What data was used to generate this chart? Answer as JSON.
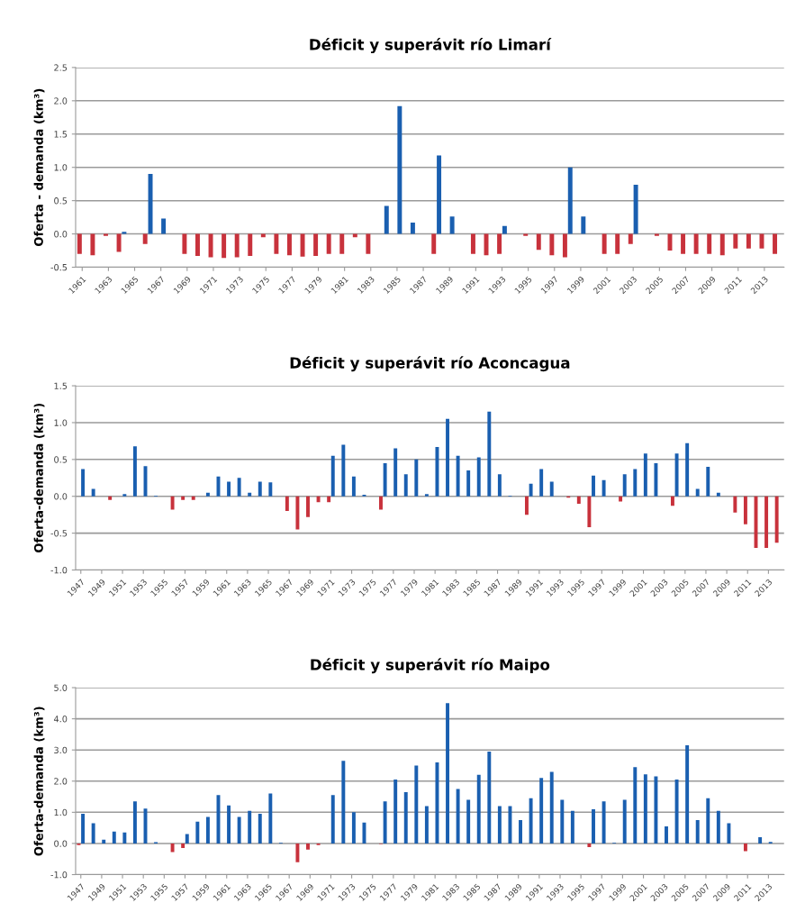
{
  "chart_data": [
    {
      "type": "bar",
      "title": "Déficit y superávit río Limarí",
      "ylabel": "Oferta - demanda (km³)",
      "grid": "y",
      "xlim": [
        1960.5,
        2014.5
      ],
      "xticks": [
        1961,
        1963,
        1965,
        1967,
        1969,
        1971,
        1973,
        1975,
        1977,
        1979,
        1981,
        1983,
        1985,
        1987,
        1989,
        1991,
        1993,
        1995,
        1997,
        1999,
        2001,
        2003,
        2005,
        2007,
        2009,
        2011,
        2013
      ],
      "ylim": [
        -0.5,
        2.5
      ],
      "yticks": [
        {
          "value": -0.5,
          "label": "-0.5"
        },
        {
          "value": 0,
          "label": "0.0"
        },
        {
          "value": 0.5,
          "label": "0.5"
        },
        {
          "value": 1,
          "label": "1.0"
        },
        {
          "value": 1.5,
          "label": "1.5"
        },
        {
          "value": 2,
          "label": "2.0"
        },
        {
          "value": 2.5,
          "label": "2.5"
        }
      ],
      "series": [
        {
          "color": "#c8323c",
          "x": [
            1961,
            1962,
            1963,
            1964,
            1966,
            1969,
            1970,
            1971,
            1972,
            1973,
            1974,
            1975,
            1976,
            1977,
            1978,
            1979,
            1980,
            1981,
            1982,
            1983,
            1988,
            1991,
            1992,
            1993,
            1995,
            1996,
            1997,
            1998,
            2001,
            2002,
            2003,
            2005,
            2006,
            2007,
            2008,
            2009,
            2010,
            2011,
            2012,
            2013,
            2014
          ],
          "values": [
            -0.3,
            -0.32,
            -0.03,
            -0.27,
            -0.15,
            -0.3,
            -0.33,
            -0.35,
            -0.36,
            -0.35,
            -0.33,
            -0.05,
            -0.3,
            -0.32,
            -0.34,
            -0.33,
            -0.3,
            -0.3,
            -0.05,
            -0.3,
            -0.3,
            -0.3,
            -0.32,
            -0.3,
            -0.03,
            -0.24,
            -0.32,
            -0.35,
            -0.3,
            -0.3,
            -0.15,
            -0.03,
            -0.25,
            -0.3,
            -0.3,
            -0.3,
            -0.32,
            -0.22,
            -0.22,
            -0.22,
            -0.3
          ]
        },
        {
          "color": "#1a5fb0",
          "x": [
            1964,
            1966,
            1967,
            1984,
            1985,
            1986,
            1988,
            1989,
            1993,
            1998,
            1999,
            2003
          ],
          "values": [
            0.03,
            0.9,
            0.23,
            0.42,
            1.92,
            0.17,
            1.18,
            0.26,
            0.12,
            1.0,
            0.26,
            0.74
          ]
        }
      ]
    },
    {
      "type": "bar",
      "title": "Déficit y superávit río Aconcagua",
      "ylabel": "Oferta-demanda (km³)",
      "grid": "y",
      "xlim": [
        1946.5,
        2014.5
      ],
      "xticks": [
        1947,
        1949,
        1951,
        1953,
        1955,
        1957,
        1959,
        1961,
        1963,
        1965,
        1967,
        1969,
        1971,
        1973,
        1975,
        1977,
        1979,
        1981,
        1983,
        1985,
        1987,
        1989,
        1991,
        1993,
        1995,
        1997,
        1999,
        2001,
        2003,
        2005,
        2007,
        2009,
        2011,
        2013
      ],
      "ylim": [
        -1.0,
        1.5
      ],
      "yticks": [
        {
          "value": -1,
          "label": "-1.0"
        },
        {
          "value": -0.5,
          "label": "-0.5"
        },
        {
          "value": 0,
          "label": "0.0"
        },
        {
          "value": 0.5,
          "label": "0.5"
        },
        {
          "value": 1,
          "label": "1.0"
        },
        {
          "value": 1.5,
          "label": "1.5"
        }
      ],
      "series": [
        {
          "color": "#c8323c",
          "x": [
            1950,
            1956,
            1957,
            1958,
            1967,
            1968,
            1969,
            1970,
            1971,
            1976,
            1990,
            1994,
            1995,
            1996,
            1999,
            2004,
            2010,
            2011,
            2012,
            2013,
            2014
          ],
          "values": [
            -0.05,
            -0.18,
            -0.05,
            -0.05,
            -0.2,
            -0.45,
            -0.28,
            -0.08,
            -0.08,
            -0.18,
            -0.25,
            -0.02,
            -0.1,
            -0.42,
            -0.07,
            -0.13,
            -0.22,
            -0.38,
            -0.7,
            -0.7,
            -0.63
          ]
        },
        {
          "color": "#1a5fb0",
          "x": [
            1947,
            1948,
            1951,
            1952,
            1953,
            1954,
            1959,
            1960,
            1961,
            1962,
            1963,
            1964,
            1965,
            1971,
            1972,
            1973,
            1974,
            1976,
            1977,
            1978,
            1979,
            1980,
            1981,
            1982,
            1983,
            1984,
            1985,
            1986,
            1987,
            1988,
            1990,
            1991,
            1992,
            1996,
            1997,
            1999,
            2000,
            2001,
            2002,
            2004,
            2005,
            2006,
            2007,
            2008
          ],
          "values": [
            0.37,
            0.1,
            0.03,
            0.68,
            0.41,
            0.01,
            0.05,
            0.27,
            0.2,
            0.25,
            0.05,
            0.2,
            0.19,
            0.55,
            0.7,
            0.27,
            0.02,
            0.45,
            0.65,
            0.3,
            0.5,
            0.03,
            0.67,
            1.05,
            0.55,
            0.35,
            0.53,
            1.15,
            0.3,
            0.01,
            0.17,
            0.37,
            0.2,
            0.28,
            0.22,
            0.3,
            0.37,
            0.58,
            0.45,
            0.58,
            0.72,
            0.1,
            0.4,
            0.05
          ]
        }
      ]
    },
    {
      "type": "bar",
      "title": "Déficit y superávit río Maipo",
      "ylabel": "Oferta-demanda (km³)",
      "grid": "y",
      "xlim": [
        1946.5,
        2014.5
      ],
      "xticks": [
        1947,
        1949,
        1951,
        1953,
        1955,
        1957,
        1959,
        1961,
        1963,
        1965,
        1967,
        1969,
        1971,
        1973,
        1975,
        1977,
        1979,
        1981,
        1983,
        1985,
        1987,
        1989,
        1991,
        1993,
        1995,
        1997,
        1999,
        2001,
        2003,
        2005,
        2007,
        2009,
        2011,
        2013
      ],
      "ylim": [
        -1.0,
        5.0
      ],
      "yticks": [
        {
          "value": -1,
          "label": "-1.0"
        },
        {
          "value": 0,
          "label": "0.0"
        },
        {
          "value": 1,
          "label": "1.0"
        },
        {
          "value": 2,
          "label": "2.0"
        },
        {
          "value": 3,
          "label": "3.0"
        },
        {
          "value": 4,
          "label": "4.0"
        },
        {
          "value": 5,
          "label": "5.0"
        }
      ],
      "series": [
        {
          "color": "#c8323c",
          "x": [
            1947,
            1956,
            1957,
            1968,
            1969,
            1970,
            1976,
            1996,
            2011
          ],
          "values": [
            -0.05,
            -0.28,
            -0.15,
            -0.6,
            -0.2,
            -0.05,
            -0.02,
            -0.12,
            -0.25
          ]
        },
        {
          "color": "#1a5fb0",
          "x": [
            1947,
            1948,
            1949,
            1950,
            1951,
            1952,
            1953,
            1954,
            1957,
            1958,
            1959,
            1960,
            1961,
            1962,
            1963,
            1964,
            1965,
            1966,
            1971,
            1972,
            1973,
            1974,
            1976,
            1977,
            1978,
            1979,
            1980,
            1981,
            1982,
            1983,
            1984,
            1985,
            1986,
            1987,
            1988,
            1989,
            1990,
            1991,
            1992,
            1993,
            1994,
            1996,
            1997,
            1998,
            1999,
            2000,
            2001,
            2002,
            2003,
            2004,
            2005,
            2006,
            2007,
            2008,
            2009,
            2012,
            2013
          ],
          "values": [
            0.95,
            0.65,
            0.12,
            0.38,
            0.35,
            1.35,
            1.12,
            0.04,
            0.3,
            0.7,
            0.85,
            1.55,
            1.22,
            0.85,
            1.05,
            0.95,
            1.6,
            0.02,
            1.55,
            2.65,
            1.0,
            0.67,
            1.35,
            2.05,
            1.65,
            2.5,
            1.2,
            2.6,
            4.5,
            1.75,
            1.4,
            2.2,
            2.95,
            1.2,
            1.2,
            0.75,
            1.45,
            2.1,
            2.3,
            1.4,
            1.05,
            1.1,
            1.35,
            0.02,
            1.4,
            2.45,
            2.22,
            2.15,
            0.55,
            2.05,
            3.15,
            0.75,
            1.45,
            1.05,
            0.65,
            0.2,
            0.05
          ]
        }
      ]
    }
  ]
}
